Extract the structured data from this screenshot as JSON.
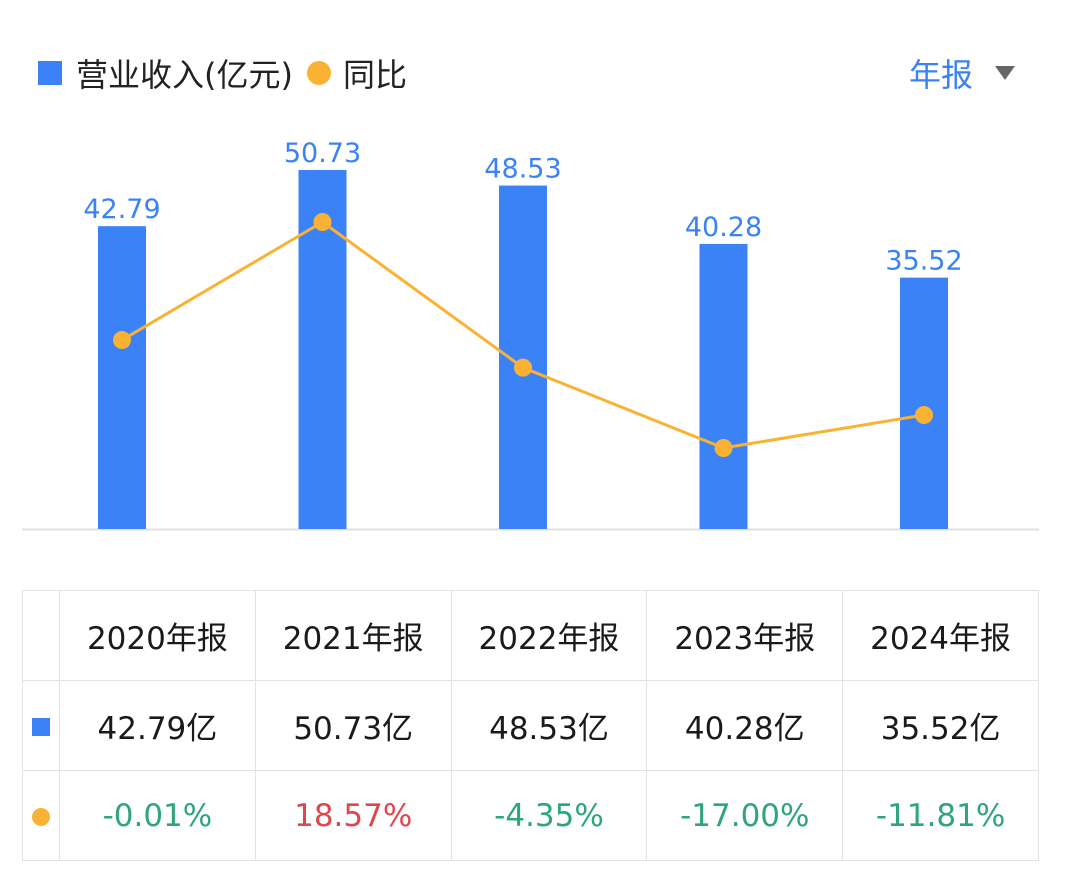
{
  "legend": {
    "revenue_label": "营业收入(亿元)",
    "yoy_label": "同比"
  },
  "period_selector": {
    "label": "年报"
  },
  "colors": {
    "bar": "#3b82f6",
    "line": "#f9b233",
    "positive": "#e0474c",
    "negative": "#2fa57a"
  },
  "chart_data": {
    "type": "bar",
    "categories": [
      "2020年报",
      "2021年报",
      "2022年报",
      "2023年报",
      "2024年报"
    ],
    "series": [
      {
        "name": "营业收入(亿元)",
        "type": "bar",
        "values": [
          42.79,
          50.73,
          48.53,
          40.28,
          35.52
        ]
      },
      {
        "name": "同比",
        "type": "line",
        "values": [
          -0.01,
          18.57,
          -4.35,
          -17.0,
          -11.81
        ]
      }
    ],
    "bar_labels": [
      "42.79",
      "50.73",
      "48.53",
      "40.28",
      "35.52"
    ]
  },
  "table": {
    "headers": [
      "2020年报",
      "2021年报",
      "2022年报",
      "2023年报",
      "2024年报"
    ],
    "revenue": [
      "42.79亿",
      "50.73亿",
      "48.53亿",
      "40.28亿",
      "35.52亿"
    ],
    "yoy": [
      "-0.01%",
      "18.57%",
      "-4.35%",
      "-17.00%",
      "-11.81%"
    ],
    "yoy_sign": [
      "neg",
      "pos",
      "neg",
      "neg",
      "neg"
    ]
  }
}
